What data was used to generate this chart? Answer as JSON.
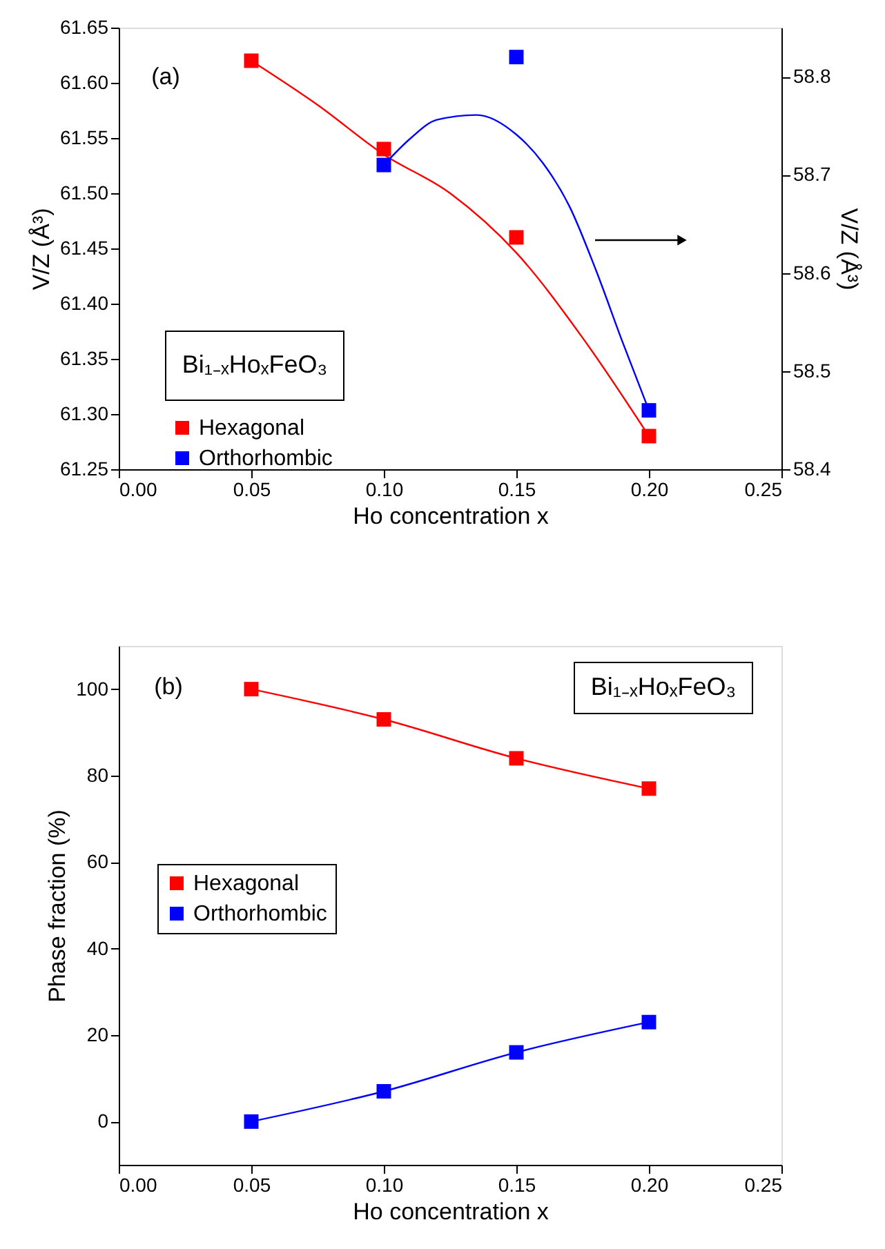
{
  "chart_data": [
    {
      "type": "scatter",
      "xlabel": "Ho concentration x",
      "ylabel": "V/Z (Å³)",
      "y2label": "V/Z (Å³)",
      "xlim": [
        0,
        0.25
      ],
      "xticks": [
        {
          "value": 0,
          "label": "0.00"
        },
        {
          "value": 0.05,
          "label": "0.05"
        },
        {
          "value": 0.1,
          "label": "0.10"
        },
        {
          "value": 0.15,
          "label": "0.15"
        },
        {
          "value": 0.2,
          "label": "0.20"
        },
        {
          "value": 0.25,
          "label": "0.25"
        }
      ],
      "ylim": [
        61.25,
        61.65
      ],
      "yticks": [
        61.25,
        {
          "value": 61.3,
          "label": "61.30"
        },
        61.35,
        {
          "value": 61.4,
          "label": "61.40"
        },
        61.45,
        {
          "value": 61.5,
          "label": "61.50"
        },
        61.55,
        {
          "value": 61.6,
          "label": "61.60"
        },
        61.65
      ],
      "y2lim": [
        58.4,
        58.85
      ],
      "y2ticks": [
        58.4,
        58.5,
        58.6,
        58.7,
        58.8
      ],
      "marker": "square",
      "grid": false,
      "legend": "bottom left",
      "annotations": [
        "(a)",
        "Bi₁₋ₓHoₓFeO₃"
      ],
      "series": [
        {
          "name": "Hexagonal",
          "color": "#ff0000",
          "type": "scatter",
          "x": [
            0.05,
            0.1,
            0.15,
            0.2
          ],
          "values": [
            61.62,
            61.54,
            61.46,
            61.28
          ]
        },
        {
          "color": "#ff0000",
          "type": "line",
          "marker": "none",
          "x": [
            0.05,
            0.075,
            0.1,
            0.125,
            0.15,
            0.175,
            0.2
          ],
          "values": [
            61.62,
            61.58,
            61.535,
            61.5,
            61.446,
            61.369,
            61.28
          ]
        },
        {
          "name": "Orthorhombic",
          "color": "#0000ff",
          "type": "scatter",
          "axis": "y2",
          "x": [
            0.1,
            0.15,
            0.2
          ],
          "values": [
            58.71,
            58.82,
            58.46
          ]
        },
        {
          "color": "#0000ff",
          "type": "line",
          "marker": "none",
          "axis": "y2",
          "x": [
            0.1,
            0.11,
            0.12,
            0.135,
            0.15,
            0.16,
            0.17,
            0.18,
            0.19,
            0.2
          ],
          "values": [
            58.71,
            58.737,
            58.756,
            58.761,
            58.741,
            58.712,
            58.668,
            58.603,
            58.53,
            58.46
          ]
        }
      ]
    },
    {
      "type": "line",
      "xlabel": "Ho concentration x",
      "ylabel": "Phase fraction (%)",
      "xlim": [
        0,
        0.25
      ],
      "xticks": [
        {
          "value": 0,
          "label": "0.00"
        },
        {
          "value": 0.05,
          "label": "0.05"
        },
        {
          "value": 0.1,
          "label": "0.10"
        },
        {
          "value": 0.15,
          "label": "0.15"
        },
        {
          "value": 0.2,
          "label": "0.20"
        },
        {
          "value": 0.25,
          "label": "0.25"
        }
      ],
      "ylim": [
        -10,
        110
      ],
      "yticks": [
        0,
        20,
        40,
        60,
        80,
        100
      ],
      "marker": "square",
      "grid": false,
      "legend": "left",
      "annotations": [
        "(b)",
        "Bi₁₋ₓHoₓFeO₃"
      ],
      "x": [
        0.05,
        0.1,
        0.15,
        0.2
      ],
      "series": [
        {
          "name": "Hexagonal",
          "color": "#ff0000",
          "values": [
            100,
            93,
            84,
            77
          ]
        },
        {
          "name": "Orthorhombic",
          "color": "#0000ff",
          "values": [
            0,
            7,
            16,
            23
          ]
        }
      ]
    }
  ]
}
